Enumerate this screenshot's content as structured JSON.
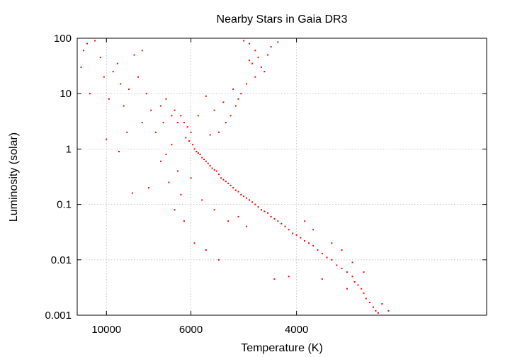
{
  "chart_data": {
    "type": "scatter",
    "title": "Nearby Stars in Gaia DR3",
    "xlabel": "Temperature (K)",
    "ylabel": "Luminosity (solar)",
    "x_scale": "reciprocal",
    "y_scale": "log",
    "xlim": [
      13000,
      2500
    ],
    "ylim": [
      0.001,
      100
    ],
    "grid": true,
    "x_ticks": [
      {
        "value": 10000,
        "label": "10000"
      },
      {
        "value": 6000,
        "label": "6000"
      },
      {
        "value": 4000,
        "label": "4000"
      }
    ],
    "y_ticks": [
      {
        "value": 100,
        "label": "100"
      },
      {
        "value": 10,
        "label": "10"
      },
      {
        "value": 1,
        "label": "1"
      },
      {
        "value": 0.1,
        "label": "0.1"
      },
      {
        "value": 0.01,
        "label": "0.01"
      },
      {
        "value": 0.001,
        "label": "0.001"
      }
    ],
    "point_color": "#ff0000",
    "series": [
      {
        "values": [
          {
            "x": 12200,
            "y": 60
          },
          {
            "x": 11800,
            "y": 80
          },
          {
            "x": 11000,
            "y": 90
          },
          {
            "x": 10500,
            "y": 45
          },
          {
            "x": 12500,
            "y": 30
          },
          {
            "x": 11500,
            "y": 10
          },
          {
            "x": 10200,
            "y": 20
          },
          {
            "x": 9500,
            "y": 25
          },
          {
            "x": 9000,
            "y": 15
          },
          {
            "x": 9800,
            "y": 8
          },
          {
            "x": 8800,
            "y": 6
          },
          {
            "x": 8500,
            "y": 12
          },
          {
            "x": 9200,
            "y": 35
          },
          {
            "x": 8200,
            "y": 50
          },
          {
            "x": 7800,
            "y": 60
          },
          {
            "x": 8000,
            "y": 20
          },
          {
            "x": 7600,
            "y": 10
          },
          {
            "x": 7400,
            "y": 5
          },
          {
            "x": 7800,
            "y": 3
          },
          {
            "x": 8600,
            "y": 2
          },
          {
            "x": 8300,
            "y": 0.16
          },
          {
            "x": 9100,
            "y": 0.9
          },
          {
            "x": 10000,
            "y": 1.5
          },
          {
            "x": 7500,
            "y": 0.2
          },
          {
            "x": 7000,
            "y": 6
          },
          {
            "x": 6800,
            "y": 8
          },
          {
            "x": 6600,
            "y": 4
          },
          {
            "x": 6900,
            "y": 3
          },
          {
            "x": 7200,
            "y": 2
          },
          {
            "x": 6500,
            "y": 5
          },
          {
            "x": 6400,
            "y": 3
          },
          {
            "x": 6300,
            "y": 4
          },
          {
            "x": 6200,
            "y": 3
          },
          {
            "x": 6100,
            "y": 2.5
          },
          {
            "x": 6000,
            "y": 2
          },
          {
            "x": 6150,
            "y": 1.6
          },
          {
            "x": 6050,
            "y": 1.4
          },
          {
            "x": 5950,
            "y": 1.2
          },
          {
            "x": 5900,
            "y": 1.0
          },
          {
            "x": 5850,
            "y": 0.9
          },
          {
            "x": 5800,
            "y": 0.85
          },
          {
            "x": 5750,
            "y": 0.8
          },
          {
            "x": 5700,
            "y": 0.7
          },
          {
            "x": 5650,
            "y": 0.65
          },
          {
            "x": 5600,
            "y": 0.6
          },
          {
            "x": 5550,
            "y": 0.55
          },
          {
            "x": 5500,
            "y": 0.5
          },
          {
            "x": 5450,
            "y": 0.45
          },
          {
            "x": 5400,
            "y": 0.42
          },
          {
            "x": 5350,
            "y": 0.4
          },
          {
            "x": 5300,
            "y": 0.35
          },
          {
            "x": 5250,
            "y": 0.3
          },
          {
            "x": 5200,
            "y": 0.28
          },
          {
            "x": 5150,
            "y": 0.26
          },
          {
            "x": 5100,
            "y": 0.24
          },
          {
            "x": 5050,
            "y": 0.22
          },
          {
            "x": 5000,
            "y": 0.2
          },
          {
            "x": 4950,
            "y": 0.18
          },
          {
            "x": 4900,
            "y": 0.17
          },
          {
            "x": 4850,
            "y": 0.15
          },
          {
            "x": 4800,
            "y": 0.14
          },
          {
            "x": 4750,
            "y": 0.13
          },
          {
            "x": 4700,
            "y": 0.12
          },
          {
            "x": 4650,
            "y": 0.11
          },
          {
            "x": 4600,
            "y": 0.1
          },
          {
            "x": 4550,
            "y": 0.09
          },
          {
            "x": 4500,
            "y": 0.08
          },
          {
            "x": 4450,
            "y": 0.075
          },
          {
            "x": 4400,
            "y": 0.07
          },
          {
            "x": 4350,
            "y": 0.06
          },
          {
            "x": 4300,
            "y": 0.055
          },
          {
            "x": 4250,
            "y": 0.05
          },
          {
            "x": 4200,
            "y": 0.045
          },
          {
            "x": 4150,
            "y": 0.04
          },
          {
            "x": 4100,
            "y": 0.035
          },
          {
            "x": 4050,
            "y": 0.03
          },
          {
            "x": 4000,
            "y": 0.028
          },
          {
            "x": 3950,
            "y": 0.025
          },
          {
            "x": 3900,
            "y": 0.022
          },
          {
            "x": 3850,
            "y": 0.02
          },
          {
            "x": 3800,
            "y": 0.018
          },
          {
            "x": 3750,
            "y": 0.015
          },
          {
            "x": 3700,
            "y": 0.013
          },
          {
            "x": 3650,
            "y": 0.011
          },
          {
            "x": 3600,
            "y": 0.01
          },
          {
            "x": 3550,
            "y": 0.008
          },
          {
            "x": 3500,
            "y": 0.007
          },
          {
            "x": 3450,
            "y": 0.006
          },
          {
            "x": 3400,
            "y": 0.005
          },
          {
            "x": 3380,
            "y": 0.004
          },
          {
            "x": 3350,
            "y": 0.0035
          },
          {
            "x": 3320,
            "y": 0.003
          },
          {
            "x": 3300,
            "y": 0.0025
          },
          {
            "x": 3280,
            "y": 0.002
          },
          {
            "x": 3250,
            "y": 0.0017
          },
          {
            "x": 3220,
            "y": 0.0014
          },
          {
            "x": 3200,
            "y": 0.0012
          },
          {
            "x": 3180,
            "y": 0.0011
          },
          {
            "x": 6500,
            "y": 0.08
          },
          {
            "x": 6200,
            "y": 0.05
          },
          {
            "x": 5900,
            "y": 0.02
          },
          {
            "x": 5600,
            "y": 0.015
          },
          {
            "x": 5300,
            "y": 0.01
          },
          {
            "x": 4300,
            "y": 0.0045
          },
          {
            "x": 4100,
            "y": 0.005
          },
          {
            "x": 3700,
            "y": 0.0045
          },
          {
            "x": 4800,
            "y": 90
          },
          {
            "x": 4700,
            "y": 80
          },
          {
            "x": 4600,
            "y": 60
          },
          {
            "x": 4550,
            "y": 45
          },
          {
            "x": 4650,
            "y": 35
          },
          {
            "x": 4500,
            "y": 30
          },
          {
            "x": 4450,
            "y": 25
          },
          {
            "x": 4600,
            "y": 20
          },
          {
            "x": 4750,
            "y": 15
          },
          {
            "x": 4850,
            "y": 10
          },
          {
            "x": 4900,
            "y": 8
          },
          {
            "x": 4950,
            "y": 6
          },
          {
            "x": 5050,
            "y": 4
          },
          {
            "x": 5150,
            "y": 3
          },
          {
            "x": 4400,
            "y": 50
          },
          {
            "x": 4350,
            "y": 70
          },
          {
            "x": 4250,
            "y": 85
          },
          {
            "x": 4700,
            "y": 40
          },
          {
            "x": 5000,
            "y": 12
          },
          {
            "x": 5200,
            "y": 7
          },
          {
            "x": 5400,
            "y": 5
          },
          {
            "x": 5600,
            "y": 9
          },
          {
            "x": 5800,
            "y": 4
          },
          {
            "x": 5300,
            "y": 2
          },
          {
            "x": 5500,
            "y": 1.8
          },
          {
            "x": 6600,
            "y": 1.2
          },
          {
            "x": 6800,
            "y": 0.8
          },
          {
            "x": 7000,
            "y": 0.6
          },
          {
            "x": 6400,
            "y": 0.4
          },
          {
            "x": 6700,
            "y": 0.25
          },
          {
            "x": 6300,
            "y": 0.15
          },
          {
            "x": 6000,
            "y": 0.3
          },
          {
            "x": 5700,
            "y": 0.12
          },
          {
            "x": 5400,
            "y": 0.08
          },
          {
            "x": 5100,
            "y": 0.05
          },
          {
            "x": 4900,
            "y": 0.06
          },
          {
            "x": 4750,
            "y": 0.04
          },
          {
            "x": 3900,
            "y": 0.05
          },
          {
            "x": 3800,
            "y": 0.035
          },
          {
            "x": 3600,
            "y": 0.02
          },
          {
            "x": 3500,
            "y": 0.015
          },
          {
            "x": 3400,
            "y": 0.009
          },
          {
            "x": 3300,
            "y": 0.006
          },
          {
            "x": 3450,
            "y": 0.003
          },
          {
            "x": 3150,
            "y": 0.0016
          },
          {
            "x": 3100,
            "y": 0.0012
          }
        ]
      }
    ]
  }
}
